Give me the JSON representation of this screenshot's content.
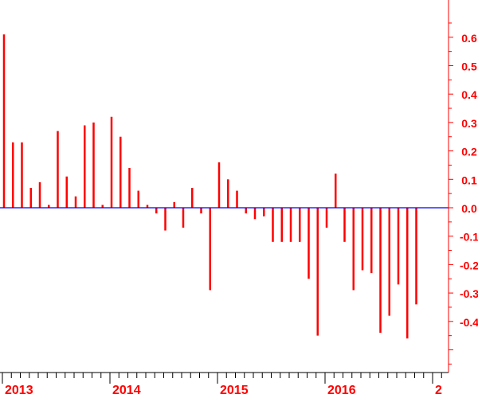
{
  "chart_data": {
    "type": "bar",
    "x": [
      "2013-01",
      "2013-02",
      "2013-03",
      "2013-04",
      "2013-05",
      "2013-06",
      "2013-07",
      "2013-08",
      "2013-09",
      "2013-10",
      "2013-11",
      "2013-12",
      "2014-01",
      "2014-02",
      "2014-03",
      "2014-04",
      "2014-05",
      "2014-06",
      "2014-07",
      "2014-08",
      "2014-09",
      "2014-10",
      "2014-11",
      "2014-12",
      "2015-01",
      "2015-02",
      "2015-03",
      "2015-04",
      "2015-05",
      "2015-06",
      "2015-07",
      "2015-08",
      "2015-09",
      "2015-10",
      "2015-11",
      "2015-12",
      "2016-01",
      "2016-02",
      "2016-03",
      "2016-04",
      "2016-05",
      "2016-06",
      "2016-07",
      "2016-08",
      "2016-09",
      "2016-10",
      "2016-11",
      "2016-12"
    ],
    "values": [
      0.61,
      0.23,
      0.23,
      0.07,
      0.09,
      0.01,
      0.27,
      0.11,
      0.04,
      0.29,
      0.3,
      0.01,
      0.32,
      0.25,
      0.14,
      0.06,
      0.01,
      -0.02,
      -0.08,
      0.02,
      -0.07,
      0.07,
      -0.02,
      -0.29,
      0.16,
      0.1,
      0.06,
      -0.02,
      -0.04,
      -0.03,
      -0.12,
      -0.12,
      -0.12,
      -0.12,
      -0.25,
      -0.45,
      -0.07,
      0.12,
      -0.12,
      -0.29,
      -0.22,
      -0.23,
      -0.44,
      -0.38,
      -0.27,
      -0.46,
      -0.34,
      null
    ],
    "yticks": [
      0.6,
      0.5,
      0.4,
      0.3,
      0.2,
      0.1,
      0.0,
      -0.1,
      -0.2,
      -0.3,
      -0.4
    ],
    "ytick_labels": [
      "0.6",
      "0.5",
      "0.4",
      "0.3",
      "0.2",
      "0.1",
      "0.0",
      "-0.1",
      "-0.2",
      "-0.3",
      "-0.4"
    ],
    "xtick_labels": [
      "2013",
      "2014",
      "2015",
      "2016",
      "2"
    ],
    "ylim": [
      -0.55,
      0.68
    ],
    "title": "",
    "xlabel": "",
    "ylabel": "",
    "grid": false,
    "y_axis_side": "right",
    "colors": {
      "bar": "#ff0000",
      "zero_line": "#0000ff",
      "axis": "#ff0000",
      "year_label": "#ff0000"
    }
  }
}
